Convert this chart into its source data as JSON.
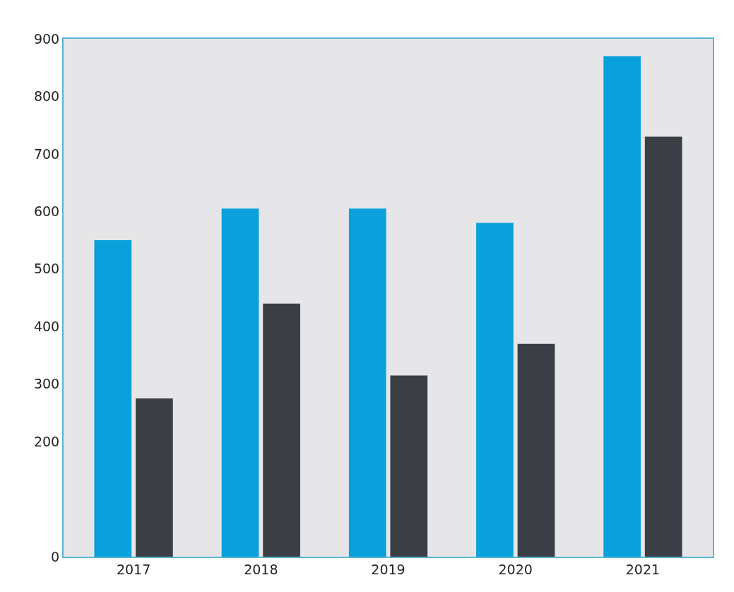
{
  "chart_data": {
    "type": "bar",
    "categories": [
      "2017",
      "2018",
      "2019",
      "2020",
      "2021"
    ],
    "series": [
      {
        "color": "#0aa0dc",
        "values": [
          550,
          605,
          605,
          580,
          870
        ]
      },
      {
        "color": "#3b3e45",
        "values": [
          275,
          440,
          315,
          370,
          730
        ]
      }
    ],
    "ylim": [
      0,
      900
    ],
    "yticks": [
      0,
      200,
      300,
      400,
      500,
      600,
      700,
      800,
      900
    ],
    "grid": false
  }
}
